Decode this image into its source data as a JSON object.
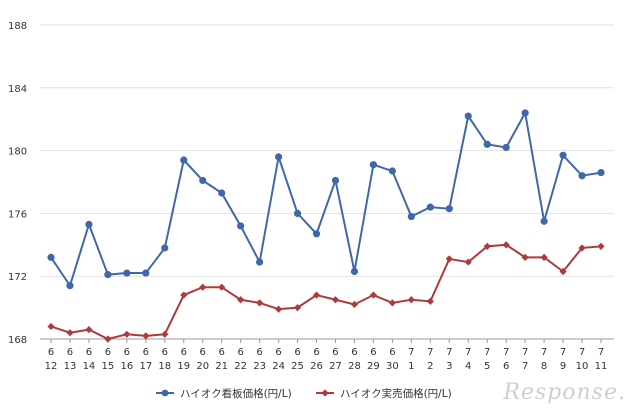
{
  "chart_data": {
    "type": "line",
    "title": "",
    "xlabel": "",
    "ylabel": "",
    "ylim": [
      168,
      188
    ],
    "yticks": [
      168,
      172,
      176,
      180,
      184,
      188
    ],
    "grid": true,
    "legend": "bottom",
    "categories": [
      [
        "6",
        "12"
      ],
      [
        "6",
        "13"
      ],
      [
        "6",
        "14"
      ],
      [
        "6",
        "15"
      ],
      [
        "6",
        "16"
      ],
      [
        "6",
        "17"
      ],
      [
        "6",
        "18"
      ],
      [
        "6",
        "19"
      ],
      [
        "6",
        "20"
      ],
      [
        "6",
        "21"
      ],
      [
        "6",
        "22"
      ],
      [
        "6",
        "23"
      ],
      [
        "6",
        "24"
      ],
      [
        "6",
        "25"
      ],
      [
        "6",
        "26"
      ],
      [
        "6",
        "27"
      ],
      [
        "6",
        "28"
      ],
      [
        "6",
        "29"
      ],
      [
        "6",
        "30"
      ],
      [
        "7",
        "1"
      ],
      [
        "7",
        "2"
      ],
      [
        "7",
        "3"
      ],
      [
        "7",
        "4"
      ],
      [
        "7",
        "5"
      ],
      [
        "7",
        "6"
      ],
      [
        "7",
        "7"
      ],
      [
        "7",
        "8"
      ],
      [
        "7",
        "9"
      ],
      [
        "7",
        "10"
      ],
      [
        "7",
        "11"
      ]
    ],
    "series": [
      {
        "name": "ハイオク看板価格(円/L)",
        "color": "#3f68a8",
        "marker": "circle",
        "values": [
          173.2,
          171.4,
          175.3,
          172.1,
          172.2,
          172.2,
          173.8,
          179.4,
          178.1,
          177.3,
          175.2,
          172.9,
          179.6,
          176.0,
          174.7,
          178.1,
          172.3,
          179.1,
          178.7,
          175.8,
          176.4,
          176.3,
          182.2,
          180.4,
          180.2,
          182.4,
          175.5,
          179.7,
          178.4,
          178.6
        ]
      },
      {
        "name": "ハイオク実売価格(円/L)",
        "color": "#b03a3a",
        "marker": "diamond",
        "values": [
          168.8,
          168.4,
          168.6,
          168.0,
          168.3,
          168.2,
          168.3,
          170.8,
          171.3,
          171.3,
          170.5,
          170.3,
          169.9,
          170.0,
          170.8,
          170.5,
          170.2,
          170.8,
          170.3,
          170.5,
          170.4,
          173.1,
          172.9,
          173.9,
          174.0,
          173.2,
          173.2,
          172.3,
          173.8,
          173.9
        ]
      }
    ]
  },
  "watermark": "Response."
}
